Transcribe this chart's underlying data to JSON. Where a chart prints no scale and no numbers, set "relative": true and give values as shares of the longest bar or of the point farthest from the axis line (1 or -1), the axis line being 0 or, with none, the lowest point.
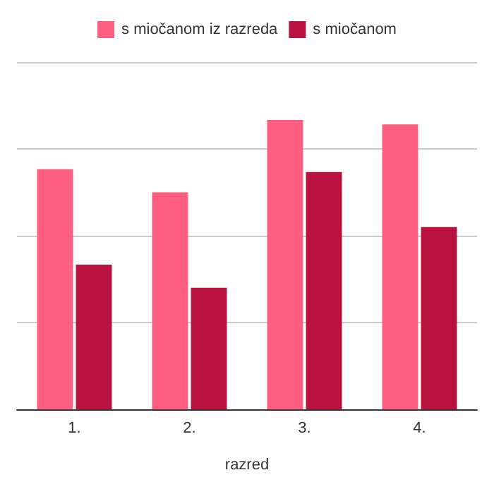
{
  "chart_data": {
    "type": "bar",
    "xlabel": "razred",
    "categories": [
      "1.",
      "2.",
      "3.",
      "4."
    ],
    "relative": true,
    "grid": "y",
    "legend": "top",
    "series": [
      {
        "name": "s miočanom iz razreda",
        "color": "#ff5f7e",
        "values": [
          0.83,
          0.75,
          1,
          0.985
        ]
      },
      {
        "name": "s miočanom",
        "color": "#b9123e",
        "values": [
          0.5,
          0.42,
          0.82,
          0.63
        ]
      }
    ]
  }
}
